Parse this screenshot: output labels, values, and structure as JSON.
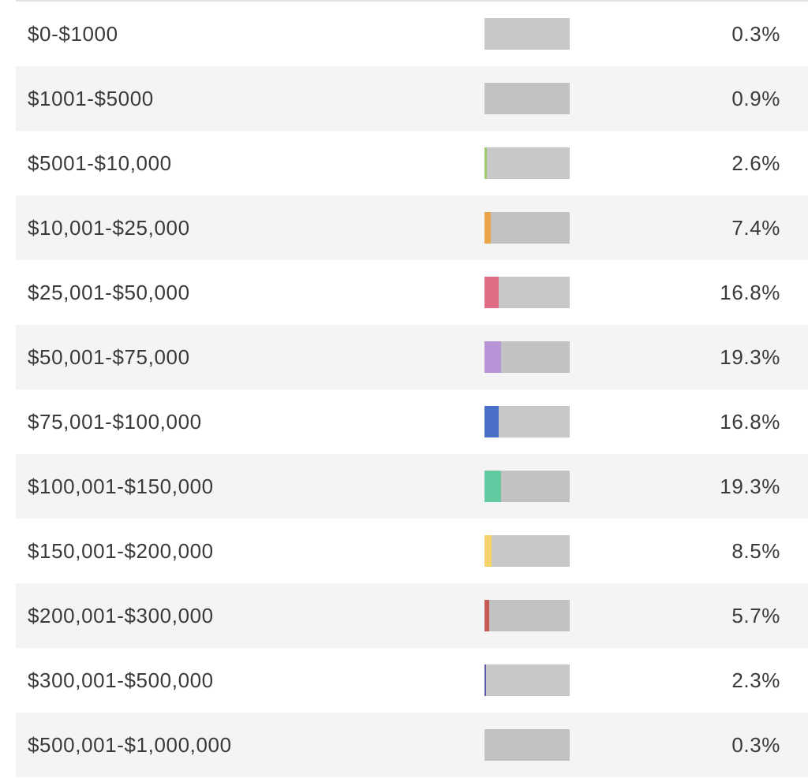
{
  "rows": [
    {
      "range": "$0-$1000",
      "percent": "0.3%",
      "fraction": 0.003,
      "color": "#c8c8c8"
    },
    {
      "range": "$1001-$5000",
      "percent": "0.9%",
      "fraction": 0.009,
      "color": "#c2c2c2"
    },
    {
      "range": "$5001-$10,000",
      "percent": "2.6%",
      "fraction": 0.026,
      "color": "#9cc96b"
    },
    {
      "range": "$10,001-$25,000",
      "percent": "7.4%",
      "fraction": 0.074,
      "color": "#eba64b"
    },
    {
      "range": "$25,001-$50,000",
      "percent": "16.8%",
      "fraction": 0.168,
      "color": "#e06d84"
    },
    {
      "range": "$50,001-$75,000",
      "percent": "19.3%",
      "fraction": 0.193,
      "color": "#b893d6"
    },
    {
      "range": "$75,001-$100,000",
      "percent": "16.8%",
      "fraction": 0.168,
      "color": "#4a6fc7"
    },
    {
      "range": "$100,001-$150,000",
      "percent": "19.3%",
      "fraction": 0.193,
      "color": "#62c9a0"
    },
    {
      "range": "$150,001-$200,000",
      "percent": "8.5%",
      "fraction": 0.085,
      "color": "#f5d36a"
    },
    {
      "range": "$200,001-$300,000",
      "percent": "5.7%",
      "fraction": 0.057,
      "color": "#c75a55"
    },
    {
      "range": "$300,001-$500,000",
      "percent": "2.3%",
      "fraction": 0.023,
      "color": "#5c5aa8"
    },
    {
      "range": "$500,001-$1,000,000",
      "percent": "0.3%",
      "fraction": 0.003,
      "color": "#c2c2c2"
    }
  ]
}
